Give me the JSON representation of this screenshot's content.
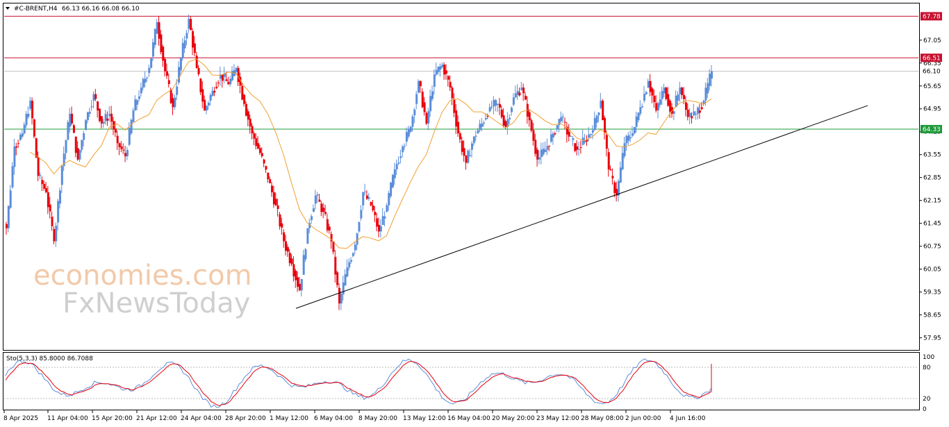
{
  "header": {
    "symbol": "#C-BRENT,H4",
    "ohlc": "66.13 66.16 66.08 66.10",
    "menu_icon": "triangle-down-icon"
  },
  "watermark": {
    "line1": "economies.com",
    "line2": "FxNewsToday"
  },
  "stochastic": {
    "label": "Sto(5,3,3) 85.8000 86.7088",
    "levels": [
      "100",
      "80",
      "20",
      "0"
    ]
  },
  "colors": {
    "bull": "#5b8dd9",
    "bear": "#e8000b",
    "ma": "#f0a030",
    "support": "#1f9a3a",
    "resistance": "#c8102e",
    "trendline": "#000000",
    "stoch_main": "#5b8dd9",
    "stoch_signal": "#e8000b"
  },
  "chart_data": {
    "type": "candlestick",
    "symbol": "#C-BRENT",
    "timeframe": "H4",
    "ylim": [
      57.6,
      68.15
    ],
    "y_ticks": [
      "57.95",
      "58.65",
      "59.35",
      "60.05",
      "60.75",
      "61.45",
      "62.15",
      "62.85",
      "63.55",
      "64.25",
      "64.95",
      "65.65",
      "66.35",
      "67.05"
    ],
    "x_ticks": [
      "8 Apr 2025",
      "11 Apr 04:00",
      "15 Apr 20:00",
      "21 Apr 12:00",
      "24 Apr 04:00",
      "28 Apr 20:00",
      "1 May 12:00",
      "6 May 04:00",
      "8 May 20:00",
      "13 May 12:00",
      "16 May 04:00",
      "20 May 20:00",
      "23 May 12:00",
      "28 May 08:00",
      "2 Jun 00:00",
      "4 Jun 16:00"
    ],
    "levels": {
      "resistance_high": "67.78",
      "resistance": "66.51",
      "current": "66.10",
      "support": "64.33"
    },
    "trendline": {
      "start": [
        "1 May 12:00",
        58.85
      ],
      "end": [
        "~9 Jun",
        65.05
      ]
    },
    "close_series": [
      61.3,
      63.8,
      64.2,
      65.2,
      62.9,
      62.4,
      60.9,
      63.2,
      64.8,
      63.4,
      64.6,
      65.4,
      64.5,
      64.8,
      63.9,
      63.5,
      64.9,
      65.6,
      66.2,
      67.6,
      66.1,
      65.0,
      66.5,
      67.7,
      66.2,
      64.9,
      65.5,
      66.0,
      65.7,
      66.2,
      65.1,
      64.2,
      63.6,
      62.8,
      62.0,
      60.9,
      60.2,
      59.4,
      61.3,
      62.3,
      61.8,
      60.9,
      59.0,
      60.1,
      60.8,
      62.4,
      62.0,
      61.2,
      62.0,
      63.1,
      63.8,
      64.4,
      65.8,
      64.5,
      66.0,
      66.3,
      65.6,
      64.2,
      63.3,
      64.1,
      64.5,
      65.0,
      65.1,
      64.4,
      65.3,
      65.6,
      64.6,
      63.4,
      63.7,
      64.2,
      64.7,
      64.1,
      63.7,
      64.0,
      64.3,
      65.2,
      63.1,
      62.3,
      63.9,
      64.2,
      65.0,
      65.8,
      64.9,
      65.6,
      64.8,
      65.6,
      64.7,
      64.8,
      65.2,
      66.1
    ],
    "ma_period_note": "",
    "stochastic": {
      "k": 85.8,
      "d": 86.7088,
      "upper": 80,
      "lower": 20
    }
  }
}
